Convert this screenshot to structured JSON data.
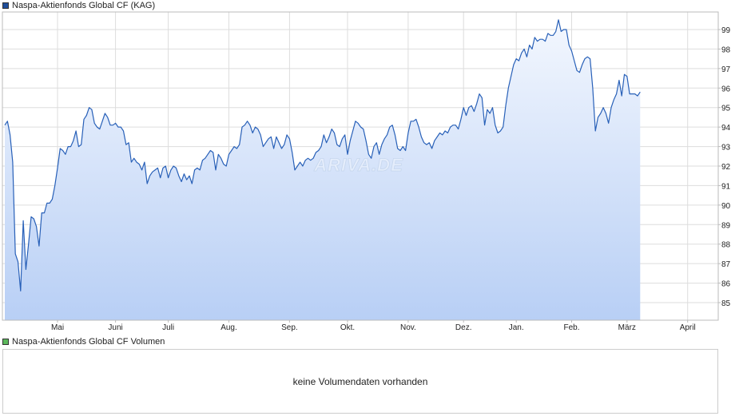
{
  "price_legend": {
    "label": "Naspa-Aktienfonds Global CF (KAG)",
    "color": "#1f4e9b"
  },
  "volume_legend": {
    "label": "Naspa-Aktienfonds Global CF Volumen",
    "color": "#5cb85c"
  },
  "volume_panel": {
    "message": "keine Volumendaten vorhanden"
  },
  "watermark": {
    "text": "ARIVA.DE"
  },
  "colors": {
    "line": "#2860b8",
    "fill_top": "#f3f7fe",
    "fill_bottom": "#b8cff5",
    "grid": "#dddddd",
    "border": "#bbbbbb"
  },
  "chart_data": {
    "type": "area",
    "title": "",
    "xlabel": "",
    "ylabel": "",
    "ylim": [
      84.1,
      99.9
    ],
    "y_ticks": [
      85,
      86,
      87,
      88,
      89,
      90,
      91,
      92,
      93,
      94,
      95,
      96,
      97,
      98,
      99
    ],
    "x_tick_labels": [
      "Mai",
      "Juni",
      "Juli",
      "Aug.",
      "Sep.",
      "Okt.",
      "Nov.",
      "Dez.",
      "Jan.",
      "Feb.",
      "März",
      "April"
    ],
    "grid": true,
    "x_range_trading_days": [
      0,
      270
    ],
    "x_tick_positions": [
      20,
      42,
      62,
      85,
      108,
      130,
      153,
      174,
      194,
      215,
      236,
      259
    ],
    "series": [
      {
        "values": [
          94.1,
          94.3,
          93.6,
          92.2,
          87.5,
          87.1,
          85.6,
          89.2,
          86.7,
          88.0,
          89.4,
          89.3,
          88.9,
          87.9,
          89.6,
          89.6,
          90.1,
          90.1,
          90.3,
          91.0,
          91.9,
          92.9,
          92.8,
          92.6,
          93.0,
          93.0,
          93.3,
          93.8,
          93.0,
          93.1,
          94.4,
          94.6,
          95.0,
          94.9,
          94.2,
          94.0,
          93.9,
          94.3,
          94.7,
          94.5,
          94.1,
          94.1,
          94.2,
          94.0,
          94.0,
          93.8,
          93.1,
          93.2,
          92.2,
          92.4,
          92.2,
          92.1,
          91.8,
          92.2,
          91.1,
          91.5,
          91.7,
          91.8,
          91.9,
          91.4,
          91.9,
          92.0,
          91.4,
          91.8,
          92.0,
          91.9,
          91.5,
          91.2,
          91.6,
          91.3,
          91.5,
          91.1,
          91.8,
          91.9,
          91.8,
          92.3,
          92.4,
          92.6,
          92.8,
          92.7,
          91.8,
          92.6,
          92.4,
          92.1,
          92.0,
          92.6,
          92.8,
          93.0,
          92.9,
          93.1,
          94.0,
          94.1,
          94.3,
          94.1,
          93.7,
          94.0,
          93.9,
          93.6,
          93.0,
          93.2,
          93.4,
          93.5,
          92.9,
          93.5,
          93.2,
          92.9,
          93.1,
          93.6,
          93.4,
          92.7,
          91.8,
          92.0,
          92.2,
          92.0,
          92.3,
          92.4,
          92.3,
          92.4,
          92.7,
          92.8,
          93.0,
          93.6,
          93.2,
          93.5,
          93.9,
          93.7,
          93.1,
          93.0,
          93.4,
          93.6,
          92.6,
          93.3,
          93.8,
          94.3,
          94.2,
          94.0,
          93.9,
          93.3,
          92.6,
          92.4,
          93.0,
          93.2,
          92.6,
          93.1,
          93.4,
          93.6,
          94.0,
          94.1,
          93.6,
          92.9,
          92.8,
          93.0,
          92.8,
          93.7,
          94.3,
          94.3,
          94.4,
          94.0,
          93.5,
          93.2,
          93.1,
          93.2,
          92.9,
          93.3,
          93.5,
          93.7,
          93.6,
          93.8,
          93.7,
          94.0,
          94.1,
          94.1,
          93.9,
          94.4,
          95.0,
          94.6,
          95.0,
          95.1,
          94.8,
          95.2,
          95.7,
          95.5,
          94.1,
          94.9,
          94.7,
          95.0,
          94.1,
          93.7,
          93.8,
          94.0,
          95.1,
          96.0,
          96.6,
          97.2,
          97.5,
          97.4,
          97.8,
          98.0,
          97.6,
          98.2,
          98.0,
          98.6,
          98.4,
          98.5,
          98.5,
          98.4,
          98.8,
          98.7,
          98.7,
          98.9,
          99.5,
          98.9,
          99.0,
          99.0,
          98.2,
          97.9,
          97.4,
          96.9,
          96.8,
          97.2,
          97.5,
          97.6,
          97.5,
          96.0,
          93.8,
          94.5,
          94.7,
          95.0,
          94.7,
          94.2,
          95.0,
          95.4,
          95.7,
          96.4,
          95.6,
          96.7,
          96.6,
          95.7,
          95.7,
          95.7,
          95.6,
          95.8
        ]
      }
    ]
  }
}
